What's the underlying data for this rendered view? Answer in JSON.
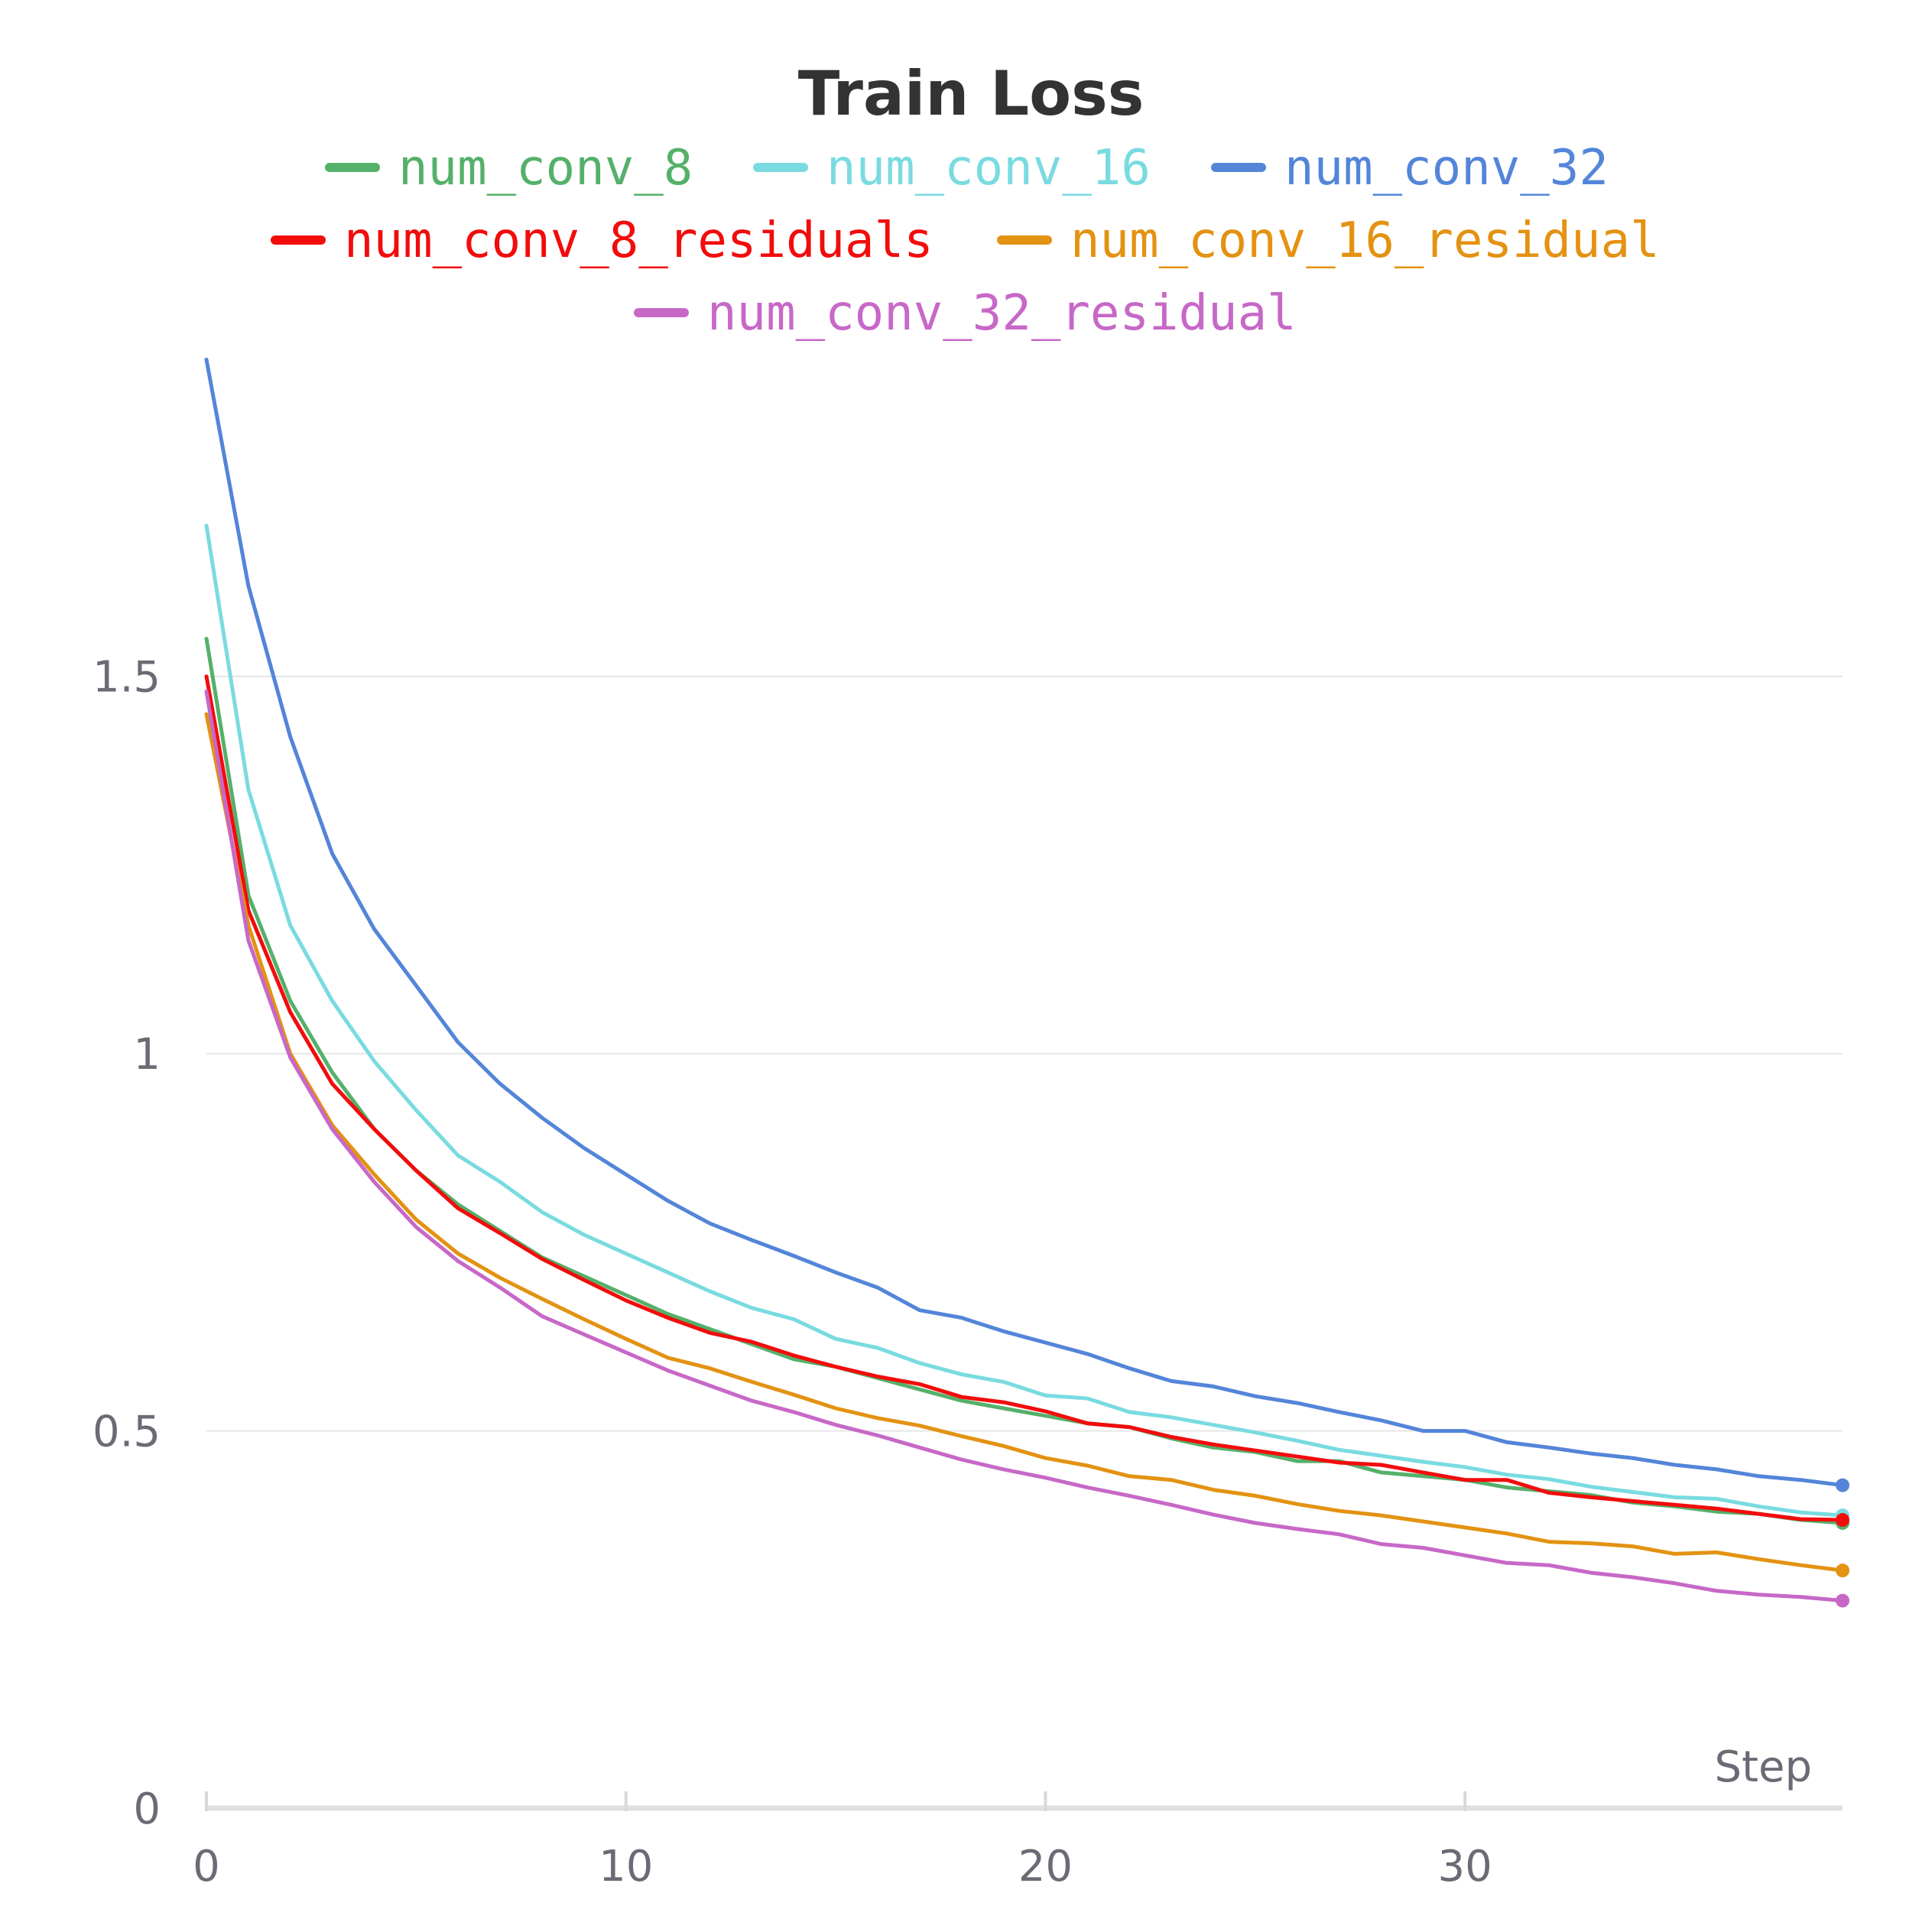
{
  "chart_data": {
    "type": "line",
    "title": "Train Loss",
    "xlabel": "Step",
    "ylabel": "",
    "xlim": [
      0,
      39
    ],
    "ylim": [
      0,
      1.9
    ],
    "x_ticks": [
      "0",
      "10",
      "20",
      "30"
    ],
    "y_ticks": [
      "0",
      "0.5",
      "1",
      "1.5"
    ],
    "grid": true,
    "legend_position": "top-center",
    "x": [
      0,
      1,
      2,
      3,
      4,
      5,
      6,
      7,
      8,
      9,
      10,
      11,
      12,
      13,
      14,
      15,
      16,
      17,
      18,
      19,
      20,
      21,
      22,
      23,
      24,
      25,
      26,
      27,
      28,
      29,
      30,
      31,
      32,
      33,
      34,
      35,
      36,
      37,
      38,
      39
    ],
    "series": [
      {
        "name": "num_conv_8",
        "color": "#55b06a",
        "values": [
          1.55,
          1.21,
          1.07,
          0.975,
          0.9,
          0.845,
          0.8,
          0.765,
          0.73,
          0.705,
          0.68,
          0.655,
          0.635,
          0.615,
          0.595,
          0.585,
          0.57,
          0.555,
          0.54,
          0.53,
          0.52,
          0.51,
          0.505,
          0.49,
          0.478,
          0.472,
          0.46,
          0.46,
          0.445,
          0.44,
          0.435,
          0.425,
          0.42,
          0.415,
          0.405,
          0.4,
          0.393,
          0.39,
          0.382,
          0.378
        ]
      },
      {
        "name": "num_conv_16",
        "color": "#79dbe0",
        "values": [
          1.7,
          1.35,
          1.17,
          1.07,
          0.99,
          0.925,
          0.865,
          0.83,
          0.79,
          0.76,
          0.735,
          0.71,
          0.685,
          0.663,
          0.648,
          0.622,
          0.61,
          0.59,
          0.575,
          0.565,
          0.547,
          0.543,
          0.525,
          0.518,
          0.508,
          0.498,
          0.487,
          0.475,
          0.467,
          0.459,
          0.452,
          0.442,
          0.436,
          0.426,
          0.419,
          0.412,
          0.41,
          0.4,
          0.392,
          0.388
        ]
      },
      {
        "name": "num_conv_32",
        "color": "#5385d9",
        "values": [
          1.92,
          1.62,
          1.42,
          1.265,
          1.165,
          1.09,
          1.015,
          0.96,
          0.915,
          0.875,
          0.84,
          0.805,
          0.775,
          0.753,
          0.732,
          0.71,
          0.69,
          0.66,
          0.65,
          0.632,
          0.617,
          0.602,
          0.583,
          0.566,
          0.559,
          0.546,
          0.537,
          0.525,
          0.514,
          0.5,
          0.5,
          0.485,
          0.478,
          0.47,
          0.464,
          0.455,
          0.449,
          0.44,
          0.435,
          0.428
        ]
      },
      {
        "name": "num_conv_8_residuals",
        "color": "#f20c0c",
        "values": [
          1.5,
          1.19,
          1.055,
          0.96,
          0.9,
          0.845,
          0.795,
          0.762,
          0.728,
          0.7,
          0.673,
          0.65,
          0.63,
          0.618,
          0.6,
          0.585,
          0.572,
          0.562,
          0.545,
          0.538,
          0.526,
          0.51,
          0.505,
          0.492,
          0.482,
          0.474,
          0.466,
          0.458,
          0.455,
          0.445,
          0.435,
          0.435,
          0.418,
          0.412,
          0.407,
          0.402,
          0.397,
          0.39,
          0.383,
          0.382
        ]
      },
      {
        "name": "num_conv_16_residual",
        "color": "#e39212",
        "values": [
          1.45,
          1.17,
          1.0,
          0.905,
          0.84,
          0.78,
          0.735,
          0.703,
          0.675,
          0.648,
          0.622,
          0.597,
          0.583,
          0.565,
          0.548,
          0.53,
          0.517,
          0.507,
          0.493,
          0.48,
          0.464,
          0.454,
          0.44,
          0.435,
          0.422,
          0.414,
          0.403,
          0.394,
          0.388,
          0.38,
          0.372,
          0.364,
          0.353,
          0.351,
          0.347,
          0.337,
          0.339,
          0.33,
          0.322,
          0.315
        ]
      },
      {
        "name": "num_conv_32_residual",
        "color": "#c768c7",
        "values": [
          1.48,
          1.15,
          0.995,
          0.9,
          0.83,
          0.77,
          0.725,
          0.69,
          0.652,
          0.628,
          0.604,
          0.58,
          0.56,
          0.54,
          0.525,
          0.508,
          0.494,
          0.478,
          0.462,
          0.449,
          0.438,
          0.425,
          0.414,
          0.402,
          0.389,
          0.378,
          0.37,
          0.363,
          0.35,
          0.345,
          0.335,
          0.325,
          0.322,
          0.312,
          0.306,
          0.298,
          0.288,
          0.283,
          0.28,
          0.275
        ]
      }
    ]
  }
}
